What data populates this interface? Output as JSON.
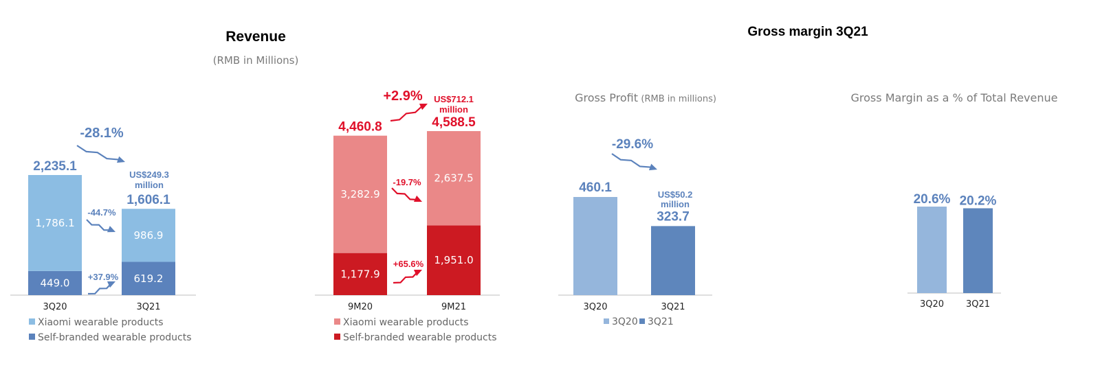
{
  "revenue_title": "Revenue",
  "revenue_unit": "(RMB in Millions)",
  "gm_title": "Gross margin 3Q21",
  "colors": {
    "blue_light": "#8CBDE3",
    "blue_dark": "#5B82BC",
    "blue_text": "#5B82BC",
    "red_light": "#EA8888",
    "red_dark": "#CC1A22",
    "red_text": "#E0102A",
    "gm_light": "#95B6DC",
    "gm_dark": "#5E86BC"
  },
  "chart_data": [
    {
      "type": "bar",
      "stacked": true,
      "categories": [
        "3Q20",
        "3Q21"
      ],
      "series": [
        {
          "name": "Self-branded wearable products",
          "values": [
            449.0,
            619.2
          ],
          "labels": [
            "449.0",
            "619.2"
          ]
        },
        {
          "name": "Xiaomi wearable products",
          "values": [
            1786.1,
            986.9
          ],
          "labels": [
            "1,786.1",
            "986.9"
          ]
        }
      ],
      "totals": [
        2235.1,
        1606.1
      ],
      "total_labels": [
        "2,235.1",
        "1,606.1"
      ],
      "total_change": "-28.1%",
      "usd_note": [
        "US$249.3",
        "million"
      ],
      "segment_changes": {
        "xiaomi": "-44.7%",
        "self_branded": "+37.9%"
      },
      "legend": [
        "Xiaomi wearable products",
        "Self-branded wearable products"
      ]
    },
    {
      "type": "bar",
      "stacked": true,
      "categories": [
        "9M20",
        "9M21"
      ],
      "series": [
        {
          "name": "Self-branded wearable products",
          "values": [
            1177.9,
            1951.0
          ],
          "labels": [
            "1,177.9",
            "1,951.0"
          ]
        },
        {
          "name": "Xiaomi wearable products",
          "values": [
            3282.9,
            2637.5
          ],
          "labels": [
            "3,282.9",
            "2,637.5"
          ]
        }
      ],
      "totals": [
        4460.8,
        4588.5
      ],
      "total_labels": [
        "4,460.8",
        "4,588.5"
      ],
      "total_change": "+2.9%",
      "usd_note": [
        "US$712.1",
        "million"
      ],
      "segment_changes": {
        "xiaomi": "-19.7%",
        "self_branded": "+65.6%"
      },
      "legend": [
        "Xiaomi wearable products",
        "Self-branded wearable products"
      ]
    },
    {
      "type": "bar",
      "title": "Gross Profit",
      "title_unit": "(RMB in millions)",
      "categories": [
        "3Q20",
        "3Q21"
      ],
      "values": [
        460.1,
        323.7
      ],
      "labels": [
        "460.1",
        "323.7"
      ],
      "change": "-29.6%",
      "usd_note": [
        "US$50.2",
        "million"
      ],
      "legend": [
        "3Q20",
        "3Q21"
      ]
    },
    {
      "type": "bar",
      "title": "Gross Margin as a % of Total Revenue",
      "categories": [
        "3Q20",
        "3Q21"
      ],
      "values": [
        20.6,
        20.2
      ],
      "labels": [
        "20.6%",
        "20.2%"
      ]
    }
  ]
}
